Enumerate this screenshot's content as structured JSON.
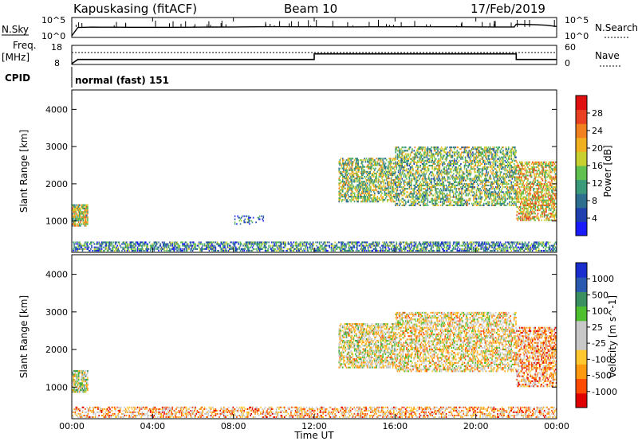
{
  "header": {
    "station": "Kapuskasing (fitACF)",
    "beam": "Beam 10",
    "date": "17/Feb/2019"
  },
  "noise_panel": {
    "left_label": "N.Sky",
    "right_label": "N.Search",
    "left_ticks": [
      "10^5",
      "10^0"
    ],
    "right_ticks": [
      "10^5",
      "10^0"
    ]
  },
  "freq_panel": {
    "left_label_1": "Freq.",
    "left_label_2": "[MHz]",
    "right_label": "Nave",
    "left_ticks": [
      "18",
      "8"
    ],
    "right_ticks": [
      "60",
      "0"
    ]
  },
  "cpid": {
    "label": "CPID",
    "value": "normal (fast) 151"
  },
  "time_axis": {
    "label": "Time UT",
    "ticks": [
      "00:00",
      "04:00",
      "08:00",
      "12:00",
      "16:00",
      "20:00",
      "00:00"
    ]
  },
  "colors": {
    "power_scale": [
      "#1a1aff",
      "#2040b0",
      "#2e6e8e",
      "#3a9a7a",
      "#60c050",
      "#c8d030",
      "#f0b020",
      "#f08020",
      "#e84020",
      "#e01010"
    ],
    "velocity_scale": [
      "#e00000",
      "#ff4a00",
      "#ff9a10",
      "#ffc830",
      "#c8c8c8",
      "#c8c8c8",
      "#4ec030",
      "#3a9060",
      "#2a5ab0",
      "#1a2ed0"
    ]
  },
  "chart_data": [
    {
      "type": "line",
      "name": "noise",
      "ylabel": "N.Sky",
      "y2label": "N.Search",
      "yscale": "log",
      "ylim": [
        1,
        100000
      ],
      "x_hours": [
        0,
        0.3,
        1,
        2,
        3,
        4,
        5,
        6,
        7,
        8,
        9,
        10,
        11,
        12,
        13,
        14,
        15,
        16,
        17,
        18,
        19,
        20,
        21,
        21.9,
        22,
        22.5,
        23,
        23.5,
        24
      ],
      "values": [
        1,
        300,
        400,
        380,
        360,
        350,
        360,
        380,
        420,
        450,
        500,
        520,
        500,
        480,
        470,
        460,
        480,
        500,
        520,
        500,
        480,
        460,
        450,
        440,
        3000,
        2500,
        2000,
        1500,
        600
      ]
    },
    {
      "type": "line",
      "name": "frequency",
      "ylabel": "Freq. [MHz]",
      "y2label": "Nave",
      "ylim": [
        8,
        18
      ],
      "y2lim": [
        0,
        60
      ],
      "x_hours": [
        0,
        0.3,
        12,
        12,
        22,
        22,
        24
      ],
      "values": [
        8,
        10.4,
        10.4,
        13.6,
        13.6,
        10.4,
        10.4
      ],
      "nave_level": 50
    },
    {
      "type": "heatmap",
      "title": "",
      "xlabel": "",
      "ylabel": "Slant Range [km]",
      "cbar_label": "Power [dB]",
      "cbar_ticks": [
        "4",
        "8",
        "12",
        "16",
        "20",
        "24",
        "28"
      ],
      "ylim": [
        180,
        4500
      ],
      "xlim_hours": [
        0,
        24
      ],
      "yticks": [
        "1000",
        "2000",
        "3000",
        "4000"
      ],
      "regions": [
        {
          "t0": 0.0,
          "t1": 24.0,
          "r0": 180,
          "r1": 450,
          "density": 0.55,
          "level": 0.3
        },
        {
          "t0": 0.0,
          "t1": 0.8,
          "r0": 850,
          "r1": 1450,
          "density": 0.75,
          "level": 0.55
        },
        {
          "t0": 8.0,
          "t1": 9.5,
          "r0": 900,
          "r1": 1150,
          "density": 0.2,
          "level": 0.25
        },
        {
          "t0": 13.2,
          "t1": 16.0,
          "r0": 1500,
          "r1": 2700,
          "density": 0.55,
          "level": 0.48
        },
        {
          "t0": 16.0,
          "t1": 22.0,
          "r0": 1400,
          "r1": 3000,
          "density": 0.5,
          "level": 0.45
        },
        {
          "t0": 22.0,
          "t1": 24.0,
          "r0": 1000,
          "r1": 2600,
          "density": 0.55,
          "level": 0.62
        }
      ]
    },
    {
      "type": "heatmap",
      "title": "",
      "xlabel": "Time UT",
      "ylabel": "Slant Range [km]",
      "cbar_label": "Velocity [m s^-1]",
      "cbar_ticks": [
        "-1000",
        "-500",
        "-100",
        "-25",
        "25",
        "100",
        "500",
        "1000"
      ],
      "ylim": [
        180,
        4500
      ],
      "xlim_hours": [
        0,
        24
      ],
      "yticks": [
        "1000",
        "2000",
        "3000",
        "4000"
      ],
      "regions": [
        {
          "t0": 0.0,
          "t1": 24.0,
          "r0": 180,
          "r1": 480,
          "density": 0.45,
          "level": 0.32
        },
        {
          "t0": 0.0,
          "t1": 0.8,
          "r0": 850,
          "r1": 1450,
          "density": 0.7,
          "level": 0.5
        },
        {
          "t0": 13.2,
          "t1": 16.0,
          "r0": 1500,
          "r1": 2700,
          "density": 0.55,
          "level": 0.45
        },
        {
          "t0": 16.0,
          "t1": 22.0,
          "r0": 1400,
          "r1": 3000,
          "density": 0.5,
          "level": 0.42
        },
        {
          "t0": 22.0,
          "t1": 24.0,
          "r0": 1000,
          "r1": 2600,
          "density": 0.55,
          "level": 0.3
        }
      ]
    }
  ]
}
